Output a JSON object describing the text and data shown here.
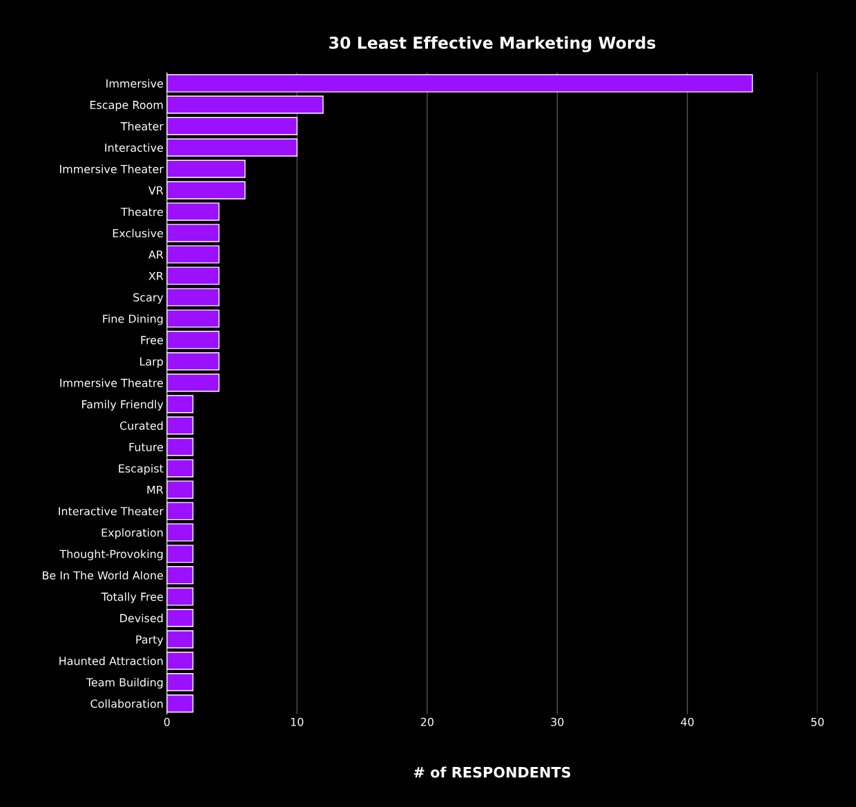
{
  "chart_data": {
    "type": "bar",
    "orientation": "horizontal",
    "title": "30 Least Effective Marketing Words",
    "xlabel": "# of RESPONDENTS",
    "categories": [
      "Immersive",
      "Escape Room",
      "Theater",
      "Interactive",
      "Immersive Theater",
      "VR",
      "Theatre",
      "Exclusive",
      "AR",
      "XR",
      "Scary",
      "Fine Dining",
      "Free",
      "Larp",
      "Immersive Theatre",
      "Family Friendly",
      "Curated",
      "Future",
      "Escapist",
      "MR",
      "Interactive Theater",
      "Exploration",
      "Thought-Provoking",
      "Be In The World Alone",
      "Totally Free",
      "Devised",
      "Party",
      "Haunted Attraction",
      "Team Building",
      "Collaboration"
    ],
    "values": [
      45,
      12,
      10,
      10,
      6,
      6,
      4,
      4,
      4,
      4,
      4,
      4,
      4,
      4,
      4,
      2,
      2,
      2,
      2,
      2,
      2,
      2,
      2,
      2,
      2,
      2,
      2,
      2,
      2,
      2
    ],
    "color": "#9b10ff",
    "xlim": [
      0,
      50
    ],
    "xticks": [
      0,
      10,
      20,
      30,
      40,
      50
    ],
    "grid": "x"
  }
}
